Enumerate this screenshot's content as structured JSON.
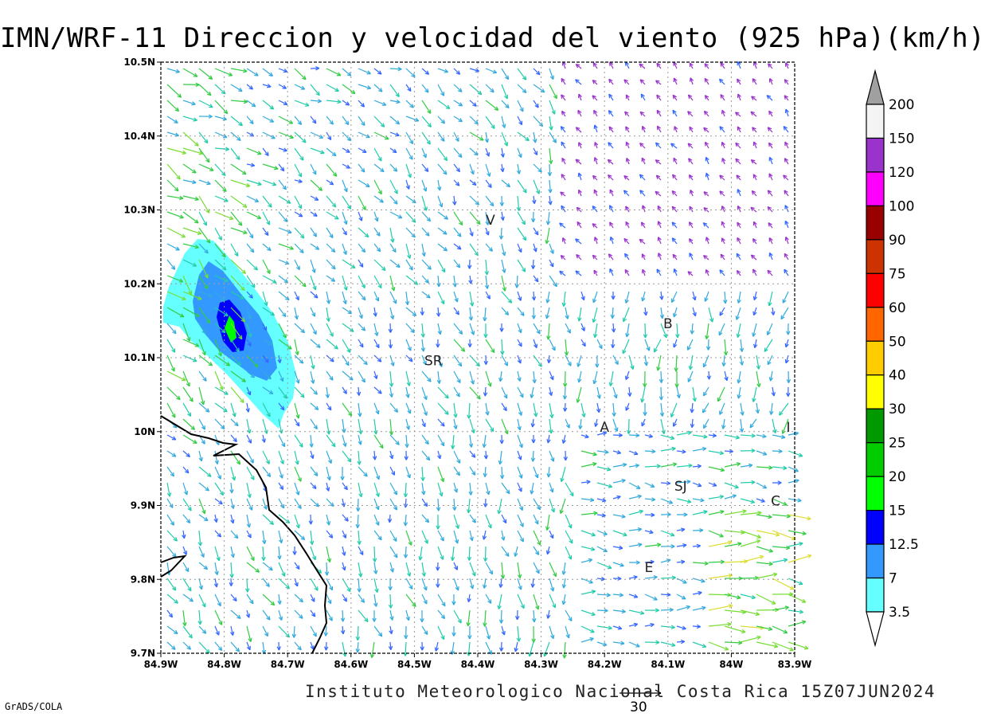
{
  "title": "IMN/WRF-11 Direccion y velocidad del viento (925 hPa)(km/h)",
  "footer": "Instituto Meteorologico Nacional Costa Rica 15Z07JUN2024",
  "credit": "GrADS/COLA",
  "reference_vector": "30",
  "axes": {
    "x_ticks": [
      "84.9W",
      "84.8W",
      "84.7W",
      "84.6W",
      "84.5W",
      "84.4W",
      "84.3W",
      "84.2W",
      "84.1W",
      "84W",
      "83.9W"
    ],
    "y_ticks": [
      "10.5N",
      "10.4N",
      "10.3N",
      "10.2N",
      "10.1N",
      "10N",
      "9.9N",
      "9.8N",
      "9.7N"
    ],
    "lon_range": [
      -84.9,
      -83.9
    ],
    "lat_range": [
      9.7,
      10.5
    ]
  },
  "cities": [
    {
      "label": "V",
      "lon": -84.38,
      "lat": 10.28
    },
    {
      "label": "SR",
      "lon": -84.47,
      "lat": 10.09
    },
    {
      "label": "B",
      "lon": -84.1,
      "lat": 10.14
    },
    {
      "label": "A",
      "lon": -84.2,
      "lat": 10.0
    },
    {
      "label": "I",
      "lon": -83.91,
      "lat": 10.0
    },
    {
      "label": "SJ",
      "lon": -84.08,
      "lat": 9.92
    },
    {
      "label": "C",
      "lon": -83.93,
      "lat": 9.9
    },
    {
      "label": "E",
      "lon": -84.13,
      "lat": 9.81
    }
  ],
  "colorbar": {
    "labels": [
      "200",
      "150",
      "120",
      "100",
      "90",
      "75",
      "60",
      "50",
      "40",
      "30",
      "25",
      "20",
      "15",
      "12.5",
      "7",
      "3.5"
    ],
    "colors": [
      "#a0a0a0",
      "#f4f4f4",
      "#9933cc",
      "#ff00ff",
      "#990000",
      "#cc3300",
      "#ff0000",
      "#ff6600",
      "#ffcc00",
      "#ffff00",
      "#009900",
      "#00cc00",
      "#00ff00",
      "#0000ff",
      "#3399ff",
      "#66ffff"
    ]
  },
  "shading": {
    "description_levels": [
      "3.5",
      "7",
      "12.5",
      "15"
    ],
    "colors": [
      "#66ffff",
      "#3399ff",
      "#0000ff",
      "#00cc00"
    ]
  }
}
